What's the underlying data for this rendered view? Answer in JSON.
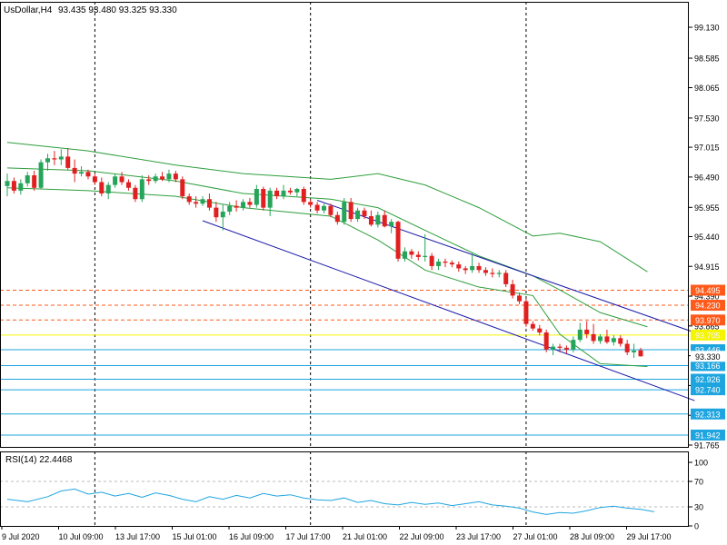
{
  "chart_data": {
    "type": "candlestick",
    "title": "UsDollar,H4",
    "ohlc_header": "93.435 93.480 93.325 93.330",
    "current_price": "93.330",
    "price_axis": {
      "ticks": [
        "99.130",
        "98.585",
        "98.065",
        "97.530",
        "97.015",
        "96.490",
        "95.955",
        "95.440",
        "94.915",
        "94.390",
        "93.865",
        "93.340",
        "92.815",
        "92.290",
        "91.765"
      ],
      "range": [
        91.765,
        99.45
      ]
    },
    "date_axis_labels": [
      "9 Jul 2020",
      "10 Jul 09:00",
      "13 Jul 17:00",
      "15 Jul 01:00",
      "16 Jul 09:00",
      "17 Jul 17:00",
      "21 Jul 01:00",
      "22 Jul 09:00",
      "23 Jul 17:00",
      "27 Jul 01:00",
      "28 Jul 09:00",
      "29 Jul 17:00"
    ],
    "candles": [
      {
        "o": 96.33,
        "h": 96.55,
        "l": 96.15,
        "c": 96.42
      },
      {
        "o": 96.42,
        "h": 96.48,
        "l": 96.2,
        "c": 96.25
      },
      {
        "o": 96.25,
        "h": 96.45,
        "l": 96.18,
        "c": 96.38
      },
      {
        "o": 96.38,
        "h": 96.58,
        "l": 96.32,
        "c": 96.52
      },
      {
        "o": 96.52,
        "h": 96.6,
        "l": 96.25,
        "c": 96.3
      },
      {
        "o": 96.3,
        "h": 96.8,
        "l": 96.28,
        "c": 96.75
      },
      {
        "o": 96.75,
        "h": 96.9,
        "l": 96.6,
        "c": 96.82
      },
      {
        "o": 96.82,
        "h": 96.95,
        "l": 96.7,
        "c": 96.8
      },
      {
        "o": 96.8,
        "h": 96.98,
        "l": 96.7,
        "c": 96.85
      },
      {
        "o": 96.85,
        "h": 97.0,
        "l": 96.62,
        "c": 96.65
      },
      {
        "o": 96.65,
        "h": 96.8,
        "l": 96.4,
        "c": 96.55
      },
      {
        "o": 96.55,
        "h": 96.68,
        "l": 96.5,
        "c": 96.58
      },
      {
        "o": 96.58,
        "h": 96.62,
        "l": 96.45,
        "c": 96.5
      },
      {
        "o": 96.5,
        "h": 96.55,
        "l": 96.35,
        "c": 96.4
      },
      {
        "o": 96.4,
        "h": 96.48,
        "l": 96.15,
        "c": 96.2
      },
      {
        "o": 96.2,
        "h": 96.4,
        "l": 96.1,
        "c": 96.35
      },
      {
        "o": 96.35,
        "h": 96.55,
        "l": 96.3,
        "c": 96.5
      },
      {
        "o": 96.5,
        "h": 96.58,
        "l": 96.35,
        "c": 96.4
      },
      {
        "o": 96.4,
        "h": 96.45,
        "l": 96.25,
        "c": 96.3
      },
      {
        "o": 96.3,
        "h": 96.35,
        "l": 96.05,
        "c": 96.1
      },
      {
        "o": 96.1,
        "h": 96.52,
        "l": 96.05,
        "c": 96.45
      },
      {
        "o": 96.45,
        "h": 96.52,
        "l": 96.35,
        "c": 96.42
      },
      {
        "o": 96.42,
        "h": 96.55,
        "l": 96.38,
        "c": 96.5
      },
      {
        "o": 96.5,
        "h": 96.58,
        "l": 96.42,
        "c": 96.45
      },
      {
        "o": 96.45,
        "h": 96.62,
        "l": 96.4,
        "c": 96.55
      },
      {
        "o": 96.55,
        "h": 96.6,
        "l": 96.4,
        "c": 96.45
      },
      {
        "o": 96.45,
        "h": 96.5,
        "l": 96.1,
        "c": 96.15
      },
      {
        "o": 96.15,
        "h": 96.2,
        "l": 96.0,
        "c": 96.05
      },
      {
        "o": 96.05,
        "h": 96.15,
        "l": 95.95,
        "c": 96.02
      },
      {
        "o": 96.02,
        "h": 96.15,
        "l": 95.98,
        "c": 96.1
      },
      {
        "o": 96.1,
        "h": 96.2,
        "l": 95.9,
        "c": 95.95
      },
      {
        "o": 95.95,
        "h": 96.05,
        "l": 95.7,
        "c": 95.78
      },
      {
        "o": 95.78,
        "h": 96.0,
        "l": 95.55,
        "c": 95.88
      },
      {
        "o": 95.88,
        "h": 96.05,
        "l": 95.82,
        "c": 95.98
      },
      {
        "o": 95.98,
        "h": 96.08,
        "l": 95.88,
        "c": 95.95
      },
      {
        "o": 95.95,
        "h": 96.1,
        "l": 95.9,
        "c": 96.05
      },
      {
        "o": 96.05,
        "h": 96.12,
        "l": 95.95,
        "c": 96.0
      },
      {
        "o": 96.0,
        "h": 96.35,
        "l": 95.95,
        "c": 96.28
      },
      {
        "o": 96.28,
        "h": 96.32,
        "l": 95.9,
        "c": 95.95
      },
      {
        "o": 95.95,
        "h": 96.3,
        "l": 95.8,
        "c": 96.25
      },
      {
        "o": 96.25,
        "h": 96.3,
        "l": 96.1,
        "c": 96.15
      },
      {
        "o": 96.15,
        "h": 96.35,
        "l": 96.1,
        "c": 96.25
      },
      {
        "o": 96.25,
        "h": 96.3,
        "l": 96.18,
        "c": 96.22
      },
      {
        "o": 96.22,
        "h": 96.3,
        "l": 96.15,
        "c": 96.28
      },
      {
        "o": 96.28,
        "h": 96.32,
        "l": 96.0,
        "c": 96.05
      },
      {
        "o": 96.05,
        "h": 96.1,
        "l": 95.95,
        "c": 96.0
      },
      {
        "o": 96.0,
        "h": 96.05,
        "l": 95.85,
        "c": 95.9
      },
      {
        "o": 95.9,
        "h": 96.02,
        "l": 95.85,
        "c": 95.98
      },
      {
        "o": 95.98,
        "h": 96.02,
        "l": 95.78,
        "c": 95.82
      },
      {
        "o": 95.82,
        "h": 95.88,
        "l": 95.65,
        "c": 95.7
      },
      {
        "o": 95.7,
        "h": 96.12,
        "l": 95.65,
        "c": 96.05
      },
      {
        "o": 96.05,
        "h": 96.12,
        "l": 95.7,
        "c": 95.75
      },
      {
        "o": 95.75,
        "h": 95.95,
        "l": 95.7,
        "c": 95.9
      },
      {
        "o": 95.9,
        "h": 95.95,
        "l": 95.75,
        "c": 95.8
      },
      {
        "o": 95.8,
        "h": 95.9,
        "l": 95.62,
        "c": 95.65
      },
      {
        "o": 95.65,
        "h": 95.88,
        "l": 95.6,
        "c": 95.82
      },
      {
        "o": 95.82,
        "h": 95.9,
        "l": 95.6,
        "c": 95.62
      },
      {
        "o": 95.62,
        "h": 95.75,
        "l": 95.5,
        "c": 95.7
      },
      {
        "o": 95.7,
        "h": 95.72,
        "l": 95.0,
        "c": 95.05
      },
      {
        "o": 95.05,
        "h": 95.25,
        "l": 95.0,
        "c": 95.18
      },
      {
        "o": 95.18,
        "h": 95.22,
        "l": 95.05,
        "c": 95.12
      },
      {
        "o": 95.12,
        "h": 95.18,
        "l": 95.02,
        "c": 95.08
      },
      {
        "o": 95.08,
        "h": 95.48,
        "l": 95.0,
        "c": 95.1
      },
      {
        "o": 95.1,
        "h": 95.15,
        "l": 94.85,
        "c": 94.92
      },
      {
        "o": 94.92,
        "h": 95.05,
        "l": 94.85,
        "c": 95.0
      },
      {
        "o": 95.0,
        "h": 95.05,
        "l": 94.9,
        "c": 94.98
      },
      {
        "o": 94.98,
        "h": 95.02,
        "l": 94.9,
        "c": 94.95
      },
      {
        "o": 94.95,
        "h": 95.0,
        "l": 94.82,
        "c": 94.88
      },
      {
        "o": 94.88,
        "h": 94.92,
        "l": 94.78,
        "c": 94.85
      },
      {
        "o": 94.85,
        "h": 95.15,
        "l": 94.8,
        "c": 94.92
      },
      {
        "o": 94.92,
        "h": 94.98,
        "l": 94.8,
        "c": 94.85
      },
      {
        "o": 94.85,
        "h": 94.9,
        "l": 94.75,
        "c": 94.8
      },
      {
        "o": 94.8,
        "h": 94.88,
        "l": 94.72,
        "c": 94.78
      },
      {
        "o": 94.78,
        "h": 94.85,
        "l": 94.72,
        "c": 94.8
      },
      {
        "o": 94.8,
        "h": 94.85,
        "l": 94.55,
        "c": 94.6
      },
      {
        "o": 94.6,
        "h": 94.68,
        "l": 94.35,
        "c": 94.4
      },
      {
        "o": 94.4,
        "h": 94.45,
        "l": 94.25,
        "c": 94.3
      },
      {
        "o": 94.3,
        "h": 94.35,
        "l": 93.85,
        "c": 93.9
      },
      {
        "o": 93.9,
        "h": 93.95,
        "l": 93.78,
        "c": 93.82
      },
      {
        "o": 93.82,
        "h": 93.88,
        "l": 93.7,
        "c": 93.75
      },
      {
        "o": 93.75,
        "h": 93.8,
        "l": 93.4,
        "c": 93.45
      },
      {
        "o": 93.45,
        "h": 93.55,
        "l": 93.35,
        "c": 93.5
      },
      {
        "o": 93.5,
        "h": 93.55,
        "l": 93.4,
        "c": 93.48
      },
      {
        "o": 93.48,
        "h": 93.52,
        "l": 93.38,
        "c": 93.45
      },
      {
        "o": 93.45,
        "h": 93.68,
        "l": 93.4,
        "c": 93.62
      },
      {
        "o": 93.62,
        "h": 93.92,
        "l": 93.58,
        "c": 93.8
      },
      {
        "o": 93.8,
        "h": 93.95,
        "l": 93.65,
        "c": 93.72
      },
      {
        "o": 93.72,
        "h": 93.9,
        "l": 93.55,
        "c": 93.6
      },
      {
        "o": 93.6,
        "h": 93.72,
        "l": 93.55,
        "c": 93.68
      },
      {
        "o": 93.68,
        "h": 93.8,
        "l": 93.55,
        "c": 93.58
      },
      {
        "o": 93.58,
        "h": 93.7,
        "l": 93.52,
        "c": 93.65
      },
      {
        "o": 93.65,
        "h": 93.7,
        "l": 93.5,
        "c": 93.55
      },
      {
        "o": 93.55,
        "h": 93.62,
        "l": 93.35,
        "c": 93.4
      },
      {
        "o": 93.4,
        "h": 93.55,
        "l": 93.3,
        "c": 93.43
      },
      {
        "o": 93.435,
        "h": 93.48,
        "l": 93.325,
        "c": 93.33
      }
    ],
    "bollinger_bands": {
      "upper": [
        [
          0,
          97.1
        ],
        [
          12,
          96.95
        ],
        [
          25,
          96.7
        ],
        [
          35,
          96.55
        ],
        [
          48,
          96.45
        ],
        [
          55,
          96.55
        ],
        [
          62,
          96.35
        ],
        [
          70,
          95.95
        ],
        [
          78,
          95.45
        ],
        [
          82,
          95.5
        ],
        [
          88,
          95.35
        ],
        [
          95,
          94.82
        ]
      ],
      "middle": [
        [
          0,
          96.65
        ],
        [
          12,
          96.6
        ],
        [
          25,
          96.42
        ],
        [
          35,
          96.2
        ],
        [
          48,
          96.1
        ],
        [
          55,
          95.95
        ],
        [
          62,
          95.55
        ],
        [
          70,
          95.1
        ],
        [
          78,
          94.75
        ],
        [
          82,
          94.5
        ],
        [
          88,
          94.1
        ],
        [
          95,
          93.85
        ]
      ],
      "lower": [
        [
          0,
          96.3
        ],
        [
          12,
          96.25
        ],
        [
          25,
          96.15
        ],
        [
          35,
          95.95
        ],
        [
          48,
          95.8
        ],
        [
          55,
          95.38
        ],
        [
          62,
          94.85
        ],
        [
          70,
          94.55
        ],
        [
          78,
          94.4
        ],
        [
          82,
          93.72
        ],
        [
          88,
          93.2
        ],
        [
          95,
          93.15
        ]
      ]
    },
    "channel": {
      "lower_line": [
        [
          29,
          95.72
        ],
        [
          102,
          92.55
        ]
      ],
      "upper_line": [
        [
          46,
          96.08
        ],
        [
          102,
          93.75
        ]
      ]
    },
    "vertical_markers": [
      13,
      45,
      77
    ],
    "horizontal_levels": [
      {
        "label": "94.495",
        "value": 94.495,
        "color": "#ff5a1a",
        "style": "dashed"
      },
      {
        "label": "94.230",
        "value": 94.23,
        "color": "#ff5a1a",
        "style": "dashed"
      },
      {
        "label": "93.970",
        "value": 93.97,
        "color": "#ff5a1a",
        "style": "dashed"
      },
      {
        "label": "93.705",
        "value": 93.705,
        "color": "#f5f500",
        "style": "solid"
      },
      {
        "label": "93.446",
        "value": 93.446,
        "color": "#1ea5e0",
        "style": "solid"
      },
      {
        "label": "93.166",
        "value": 93.166,
        "color": "#1ea5e0",
        "style": "solid"
      },
      {
        "label": "92.926",
        "value": 92.926,
        "color": "#1ea5e0",
        "style": "solid"
      },
      {
        "label": "92.740",
        "value": 92.74,
        "color": "#1ea5e0",
        "style": "solid"
      },
      {
        "label": "92.313",
        "value": 92.313,
        "color": "#1ea5e0",
        "style": "solid"
      },
      {
        "label": "91.942",
        "value": 91.942,
        "color": "#1ea5e0",
        "style": "solid"
      }
    ],
    "rsi": {
      "label": "RSI(14) 22.4468",
      "ticks": [
        "100",
        "70",
        "30",
        "0"
      ],
      "levels": [
        70,
        30
      ],
      "values": [
        [
          0,
          42
        ],
        [
          3,
          38
        ],
        [
          6,
          46
        ],
        [
          8,
          55
        ],
        [
          10,
          58
        ],
        [
          12,
          50
        ],
        [
          14,
          53
        ],
        [
          16,
          47
        ],
        [
          18,
          51
        ],
        [
          20,
          45
        ],
        [
          22,
          52
        ],
        [
          24,
          48
        ],
        [
          26,
          42
        ],
        [
          28,
          38
        ],
        [
          30,
          46
        ],
        [
          32,
          42
        ],
        [
          34,
          48
        ],
        [
          36,
          44
        ],
        [
          38,
          51
        ],
        [
          40,
          47
        ],
        [
          42,
          49
        ],
        [
          44,
          44
        ],
        [
          46,
          41
        ],
        [
          48,
          40
        ],
        [
          50,
          44
        ],
        [
          52,
          37
        ],
        [
          54,
          40
        ],
        [
          56,
          35
        ],
        [
          58,
          33
        ],
        [
          60,
          37
        ],
        [
          62,
          34
        ],
        [
          64,
          36
        ],
        [
          66,
          32
        ],
        [
          68,
          35
        ],
        [
          70,
          38
        ],
        [
          72,
          33
        ],
        [
          74,
          31
        ],
        [
          76,
          28
        ],
        [
          78,
          22
        ],
        [
          80,
          18
        ],
        [
          82,
          21
        ],
        [
          84,
          20
        ],
        [
          86,
          24
        ],
        [
          88,
          29
        ],
        [
          90,
          31
        ],
        [
          92,
          28
        ],
        [
          94,
          26
        ],
        [
          96,
          22.4
        ]
      ]
    },
    "colors": {
      "bull": "#26a55a",
      "bear": "#e02020",
      "band": "#2e9e3c",
      "channel": "#1a1aaa",
      "rsi": "#1ea5e0",
      "level_orange": "#ff5a1a",
      "level_blue": "#1ea5e0",
      "level_yellow": "#f5f500",
      "grid_marker": "#000000"
    }
  }
}
